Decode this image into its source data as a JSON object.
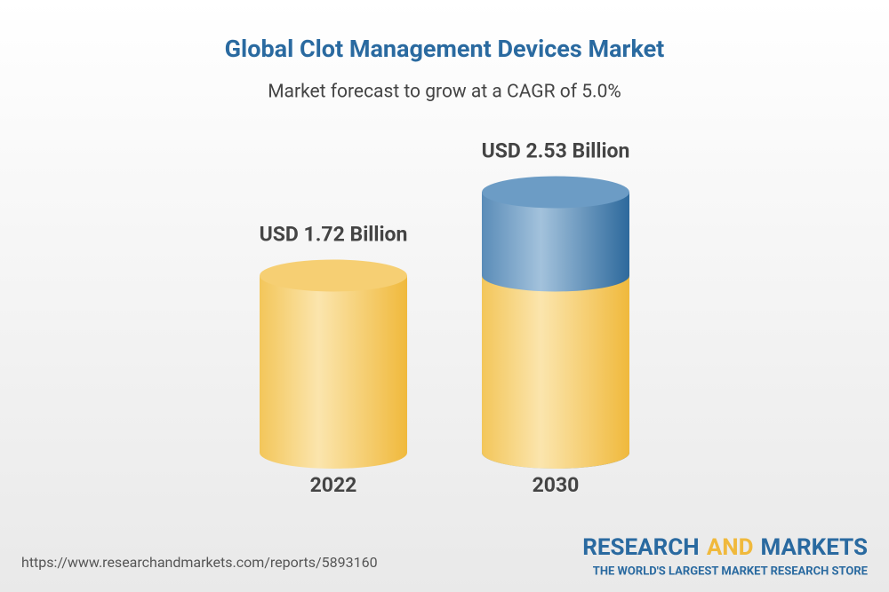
{
  "chart_data": {
    "type": "cylinder",
    "title": "Global Clot Management Devices Market",
    "subtitle": "Market forecast to grow at a CAGR of 5.0%",
    "categories": [
      "2022",
      "2030"
    ],
    "values": [
      1.72,
      2.53
    ],
    "value_labels": [
      "USD 1.72 Billion",
      "USD 2.53 Billion"
    ],
    "color": "#f2c14e",
    "growth_color": "#2e6a9c"
  },
  "source": "https://www.researchandmarkets.com/reports/5893160",
  "logo": {
    "name": [
      "RESEARCH",
      "AND",
      "MARKETS"
    ],
    "tagline": "THE WORLD'S LARGEST MARKET RESEARCH STORE"
  }
}
